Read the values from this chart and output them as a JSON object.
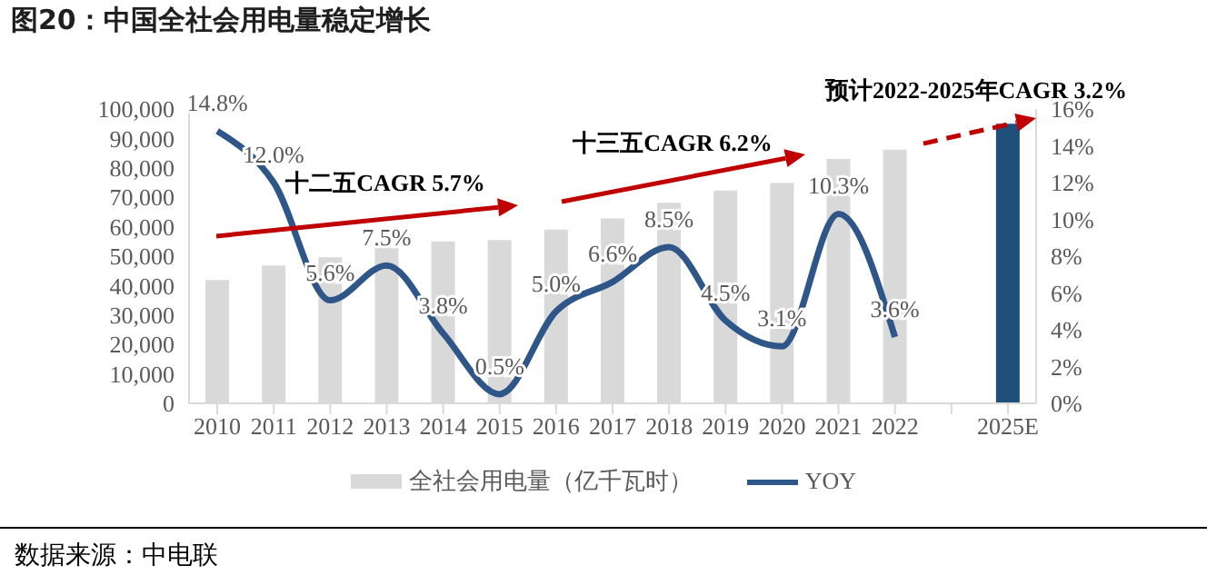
{
  "chart_data": {
    "type": "bar",
    "title": "图20：中国全社会用电量稳定增长",
    "categories": [
      "2010",
      "2011",
      "2012",
      "2013",
      "2014",
      "2015",
      "2016",
      "2017",
      "2018",
      "2019",
      "2020",
      "2021",
      "2022",
      null,
      "2025E"
    ],
    "series": [
      {
        "name": "全社会用电量（亿千瓦时）",
        "color": "#d9d9d9",
        "colors": [
          "#d9d9d9",
          "#d9d9d9",
          "#d9d9d9",
          "#d9d9d9",
          "#d9d9d9",
          "#d9d9d9",
          "#d9d9d9",
          "#d9d9d9",
          "#d9d9d9",
          "#d9d9d9",
          "#d9d9d9",
          "#d9d9d9",
          "#d9d9d9",
          "#d9d9d9",
          "#1f4e79"
        ],
        "values": [
          41900,
          46800,
          49600,
          53000,
          55000,
          55500,
          59000,
          62800,
          68100,
          72300,
          74900,
          83000,
          86200,
          null,
          95000
        ]
      },
      {
        "name": "YOY",
        "type": "line",
        "axis": "y2",
        "color": "#2e5688",
        "values": [
          14.8,
          12.0,
          5.6,
          7.5,
          3.8,
          0.5,
          5.0,
          6.6,
          8.5,
          4.5,
          3.1,
          10.3,
          3.6,
          null,
          null
        ],
        "value_labels": [
          "14.8%",
          "12.0%",
          "5.6%",
          "7.5%",
          "3.8%",
          "0.5%",
          "5.0%",
          "6.6%",
          "8.5%",
          "4.5%",
          "3.1%",
          "10.3%",
          "3.6%",
          null,
          null
        ]
      }
    ],
    "ylim": [
      0,
      100000
    ],
    "yticks": [
      {
        "value": 0,
        "label": "0"
      },
      {
        "value": 10000,
        "label": "10,000"
      },
      {
        "value": 20000,
        "label": "20,000"
      },
      {
        "value": 30000,
        "label": "30,000"
      },
      {
        "value": 40000,
        "label": "40,000"
      },
      {
        "value": 50000,
        "label": "50,000"
      },
      {
        "value": 60000,
        "label": "60,000"
      },
      {
        "value": 70000,
        "label": "70,000"
      },
      {
        "value": 80000,
        "label": "80,000"
      },
      {
        "value": 90000,
        "label": "90,000"
      },
      {
        "value": 100000,
        "label": "100,000"
      }
    ],
    "y2lim": [
      0,
      16
    ],
    "y2ticks": [
      {
        "value": 0,
        "label": "0%"
      },
      {
        "value": 2,
        "label": "2%"
      },
      {
        "value": 4,
        "label": "4%"
      },
      {
        "value": 6,
        "label": "6%"
      },
      {
        "value": 8,
        "label": "8%"
      },
      {
        "value": 10,
        "label": "10%"
      },
      {
        "value": 12,
        "label": "12%"
      },
      {
        "value": 14,
        "label": "14%"
      },
      {
        "value": 16,
        "label": "16%"
      }
    ],
    "grid": false,
    "legend": "bottom",
    "marker": "none",
    "line_style": "solid",
    "annotations": [
      "十二五CAGR 5.7%",
      "十三五CAGR 6.2%",
      "预计2022-2025年CAGR 3.2%",
      "数据来源：中电联"
    ]
  }
}
